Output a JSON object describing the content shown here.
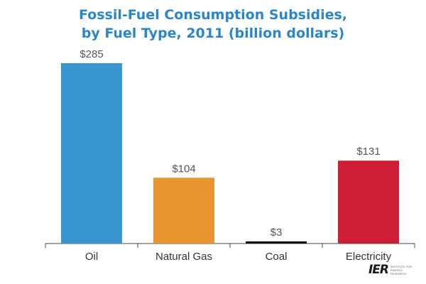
{
  "chart_data": {
    "type": "bar",
    "title": "Fossil-Fuel Consumption Subsidies,",
    "subtitle": "by Fuel Type, 2011 (billion dollars)",
    "categories": [
      "Oil",
      "Natural Gas",
      "Coal",
      "Electricity"
    ],
    "values": [
      285,
      104,
      3,
      131
    ],
    "data_labels": [
      "$285",
      "$104",
      "$3",
      "$131"
    ],
    "colors": [
      "#3a96d0",
      "#e89530",
      "#111111",
      "#cc1f35"
    ],
    "ylim": [
      0,
      300
    ],
    "grid": false,
    "legend": "none"
  },
  "colors": {
    "title": "#2a86c6",
    "axis": "#444444"
  },
  "logo": {
    "mark": "IER",
    "tagline": "INSTITUTE FOR ENERGY RESEARCH"
  }
}
